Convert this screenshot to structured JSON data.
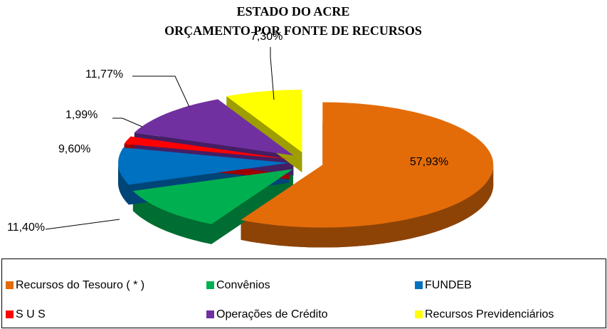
{
  "chart_data": {
    "type": "pie3d",
    "title": [
      "ESTADO DO ACRE",
      "ORÇAMENTO POR FONTE DE RECURSOS"
    ],
    "categories": [
      "Recursos do Tesouro ( * )",
      "Convênios",
      "FUNDEB",
      "S U S",
      "Operações de Crédito",
      "Recursos Previdenciários"
    ],
    "values": [
      57.93,
      11.4,
      9.6,
      1.99,
      11.77,
      7.3
    ],
    "value_labels": [
      "57,93%",
      "11,40%",
      "9,60%",
      "1,99%",
      "11,77%",
      "7,30%"
    ],
    "colors": [
      "#e36c09",
      "#00b050",
      "#0070c0",
      "#ff0000",
      "#7030a0",
      "#ffff00"
    ],
    "legend": "bottom"
  }
}
